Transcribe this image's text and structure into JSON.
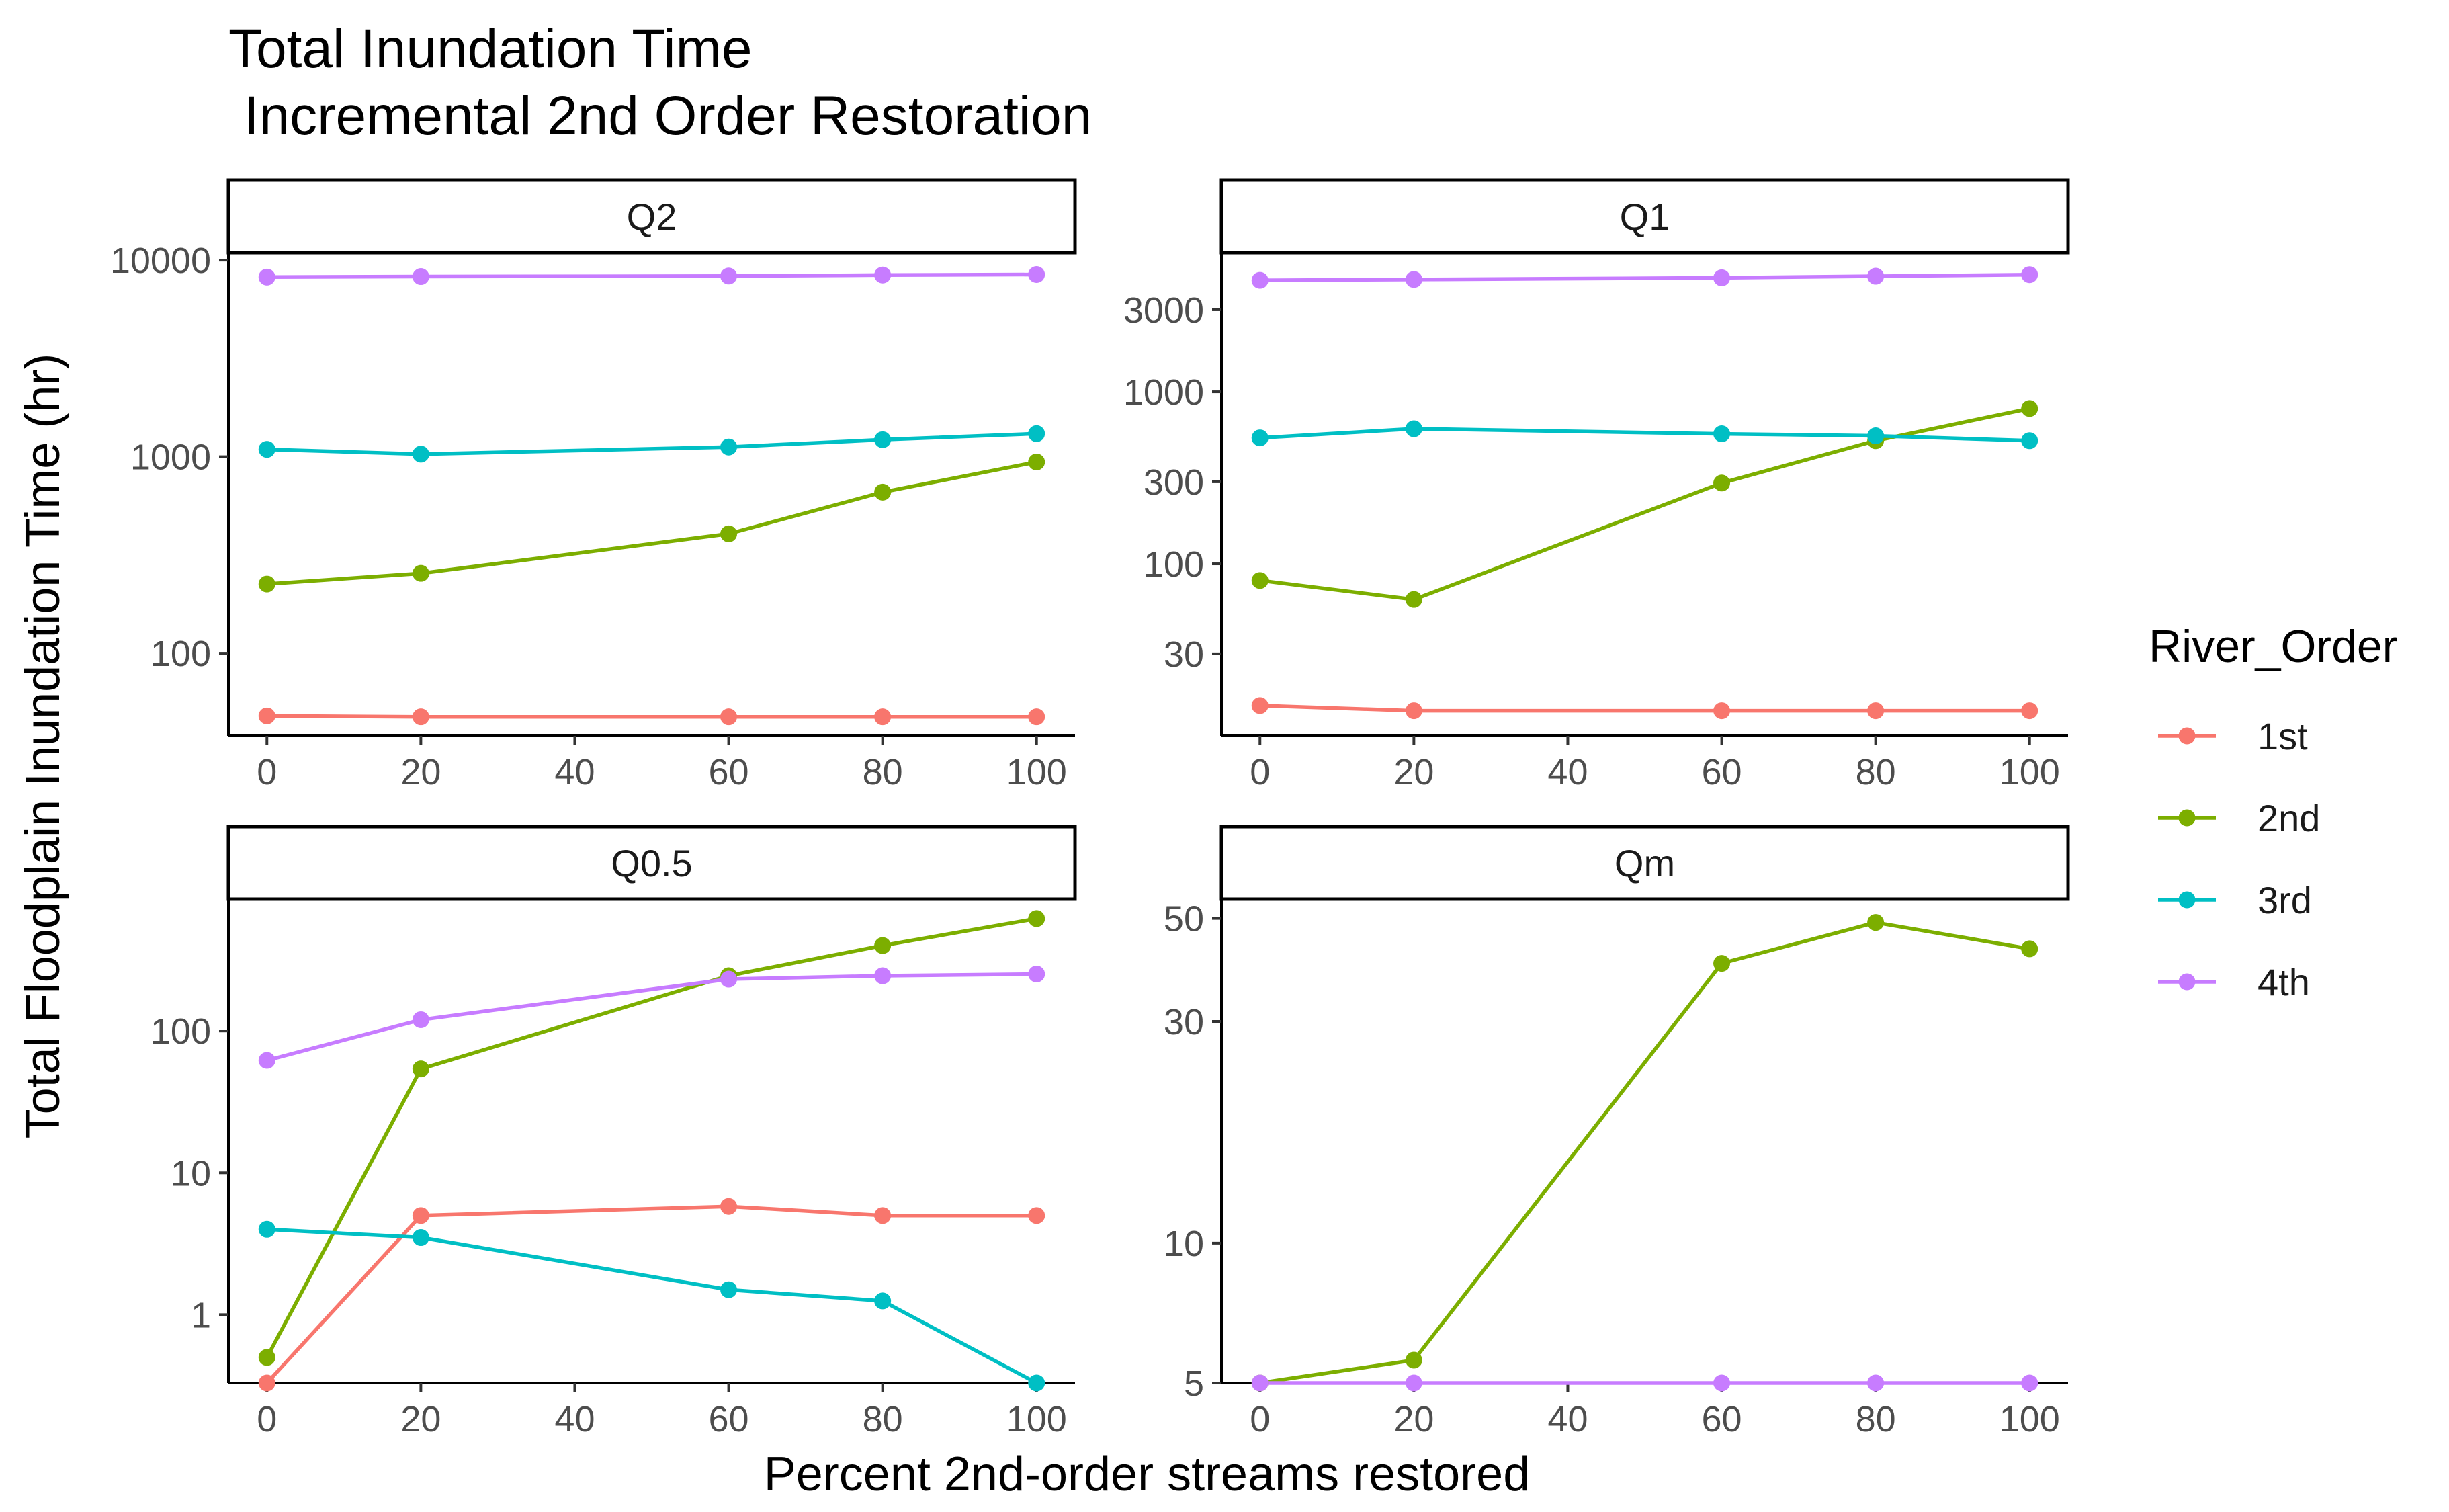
{
  "chart_data": {
    "type": "line",
    "title_line1": "Total Inundation Time",
    "title_line2": " Incremental 2nd Order Restoration",
    "xlabel": "Percent 2nd-order streams restored",
    "ylabel": "Total Floodplain Inundation Time (hr)",
    "y_scale": "log10",
    "x_ticks": [
      0,
      20,
      40,
      60,
      80,
      100
    ],
    "legend": {
      "title": "River_Order",
      "position": "right",
      "entries": [
        {
          "name": "1st",
          "color": "#F8766D"
        },
        {
          "name": "2nd",
          "color": "#7CAE00"
        },
        {
          "name": "3rd",
          "color": "#00BFC4"
        },
        {
          "name": "4th",
          "color": "#C77CFF"
        }
      ]
    },
    "panels": [
      {
        "name": "Q2",
        "ylim": [
          38,
          11000
        ],
        "y_ticks": [
          {
            "v": 100,
            "label": "100"
          },
          {
            "v": 1000,
            "label": "1000"
          },
          {
            "v": 10000,
            "label": "10000"
          }
        ],
        "series": [
          {
            "name": "1st",
            "x": [
              0,
              20,
              60,
              80,
              100
            ],
            "y": [
              48,
              47.5,
              47.5,
              47.5,
              47.5
            ]
          },
          {
            "name": "2nd",
            "x": [
              0,
              20,
              60,
              80,
              100
            ],
            "y": [
              225,
              255,
              405,
              660,
              940
            ]
          },
          {
            "name": "3rd",
            "x": [
              0,
              20,
              60,
              80,
              100
            ],
            "y": [
              1090,
              1030,
              1120,
              1220,
              1310
            ]
          },
          {
            "name": "4th",
            "x": [
              0,
              20,
              60,
              80,
              100
            ],
            "y": [
              8200,
              8250,
              8300,
              8400,
              8450
            ]
          }
        ]
      },
      {
        "name": "Q1",
        "ylim": [
          10,
          6500
        ],
        "y_ticks": [
          {
            "v": 30,
            "label": "30"
          },
          {
            "v": 100,
            "label": "100"
          },
          {
            "v": 300,
            "label": "300"
          },
          {
            "v": 1000,
            "label": "1000"
          },
          {
            "v": 3000,
            "label": "3000"
          }
        ],
        "series": [
          {
            "name": "1st",
            "x": [
              0,
              20,
              60,
              80,
              100
            ],
            "y": [
              15,
              14,
              14,
              14,
              14
            ]
          },
          {
            "name": "2nd",
            "x": [
              0,
              20,
              60,
              80,
              100
            ],
            "y": [
              80,
              62,
              295,
              520,
              800
            ]
          },
          {
            "name": "3rd",
            "x": [
              0,
              20,
              60,
              80,
              100
            ],
            "y": [
              540,
              610,
              570,
              555,
              520
            ]
          },
          {
            "name": "4th",
            "x": [
              0,
              20,
              60,
              80,
              100
            ],
            "y": [
              4450,
              4500,
              4600,
              4700,
              4800
            ]
          }
        ]
      },
      {
        "name": "Q0.5",
        "ylim": [
          0.33,
          850
        ],
        "y_ticks": [
          {
            "v": 1,
            "label": "1"
          },
          {
            "v": 10,
            "label": "10"
          },
          {
            "v": 100,
            "label": "100"
          }
        ],
        "series": [
          {
            "name": "1st",
            "x": [
              0,
              20,
              60,
              80,
              100
            ],
            "y": [
              0.33,
              5,
              5.8,
              5,
              5
            ]
          },
          {
            "name": "2nd",
            "x": [
              0,
              20,
              60,
              80,
              100
            ],
            "y": [
              0.5,
              54,
              245,
              400,
              620
            ]
          },
          {
            "name": "3rd",
            "x": [
              0,
              20,
              60,
              80,
              100
            ],
            "y": [
              4,
              3.5,
              1.5,
              1.25,
              0.33
            ]
          },
          {
            "name": "4th",
            "x": [
              0,
              20,
              60,
              80,
              100
            ],
            "y": [
              62,
              120,
              232,
              245,
              252
            ]
          }
        ]
      },
      {
        "name": "Qm",
        "ylim": [
          5,
          55
        ],
        "y_ticks": [
          {
            "v": 5,
            "label": "5"
          },
          {
            "v": 10,
            "label": "10"
          },
          {
            "v": 30,
            "label": "30"
          },
          {
            "v": 50,
            "label": "50"
          }
        ],
        "series": [
          {
            "name": "2nd",
            "x": [
              0,
              20,
              60,
              80,
              100
            ],
            "y": [
              5,
              5.6,
              40,
              49,
              43
            ]
          },
          {
            "name": "4th",
            "x": [
              0,
              20,
              60,
              80,
              100
            ],
            "y": [
              5,
              5,
              5,
              5,
              5
            ]
          }
        ]
      }
    ]
  }
}
